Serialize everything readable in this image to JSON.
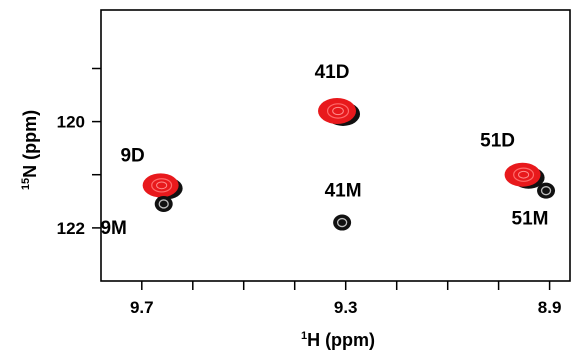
{
  "chart_data": {
    "type": "scatter",
    "title": "",
    "xlabel": {
      "superscript": "1",
      "text": "H (ppm)"
    },
    "ylabel": {
      "superscript": "15",
      "text": "N (ppm)"
    },
    "xlim": [
      9.78,
      8.86
    ],
    "ylim": [
      123.0,
      117.9
    ],
    "x_reversed": true,
    "y_reversed": true,
    "grid": false,
    "x_ticks": [
      9.7,
      9.6,
      9.5,
      9.4,
      9.3,
      9.2,
      9.1,
      9.0,
      8.9
    ],
    "x_tick_labels": [
      {
        "value": 9.7,
        "label": "9.7"
      },
      {
        "value": 9.3,
        "label": "9.3"
      },
      {
        "value": 8.9,
        "label": "8.9"
      }
    ],
    "y_ticks": [
      119,
      120,
      121,
      122
    ],
    "y_tick_labels": [
      {
        "value": 120,
        "label": "120"
      },
      {
        "value": 122,
        "label": "122"
      }
    ],
    "series": [
      {
        "color": "#e8191c",
        "points": [
          {
            "x": 9.663,
            "y": 121.2,
            "label": "9D"
          },
          {
            "x": 9.317,
            "y": 119.8,
            "label": "41D"
          },
          {
            "x": 8.953,
            "y": 121.0,
            "label": "51D"
          }
        ]
      },
      {
        "color": "#1a1a1a",
        "points": [
          {
            "x": 9.657,
            "y": 121.55,
            "label": "9M"
          },
          {
            "x": 9.307,
            "y": 121.9,
            "label": "41M"
          },
          {
            "x": 8.907,
            "y": 121.3,
            "label": "51M"
          }
        ]
      }
    ]
  }
}
